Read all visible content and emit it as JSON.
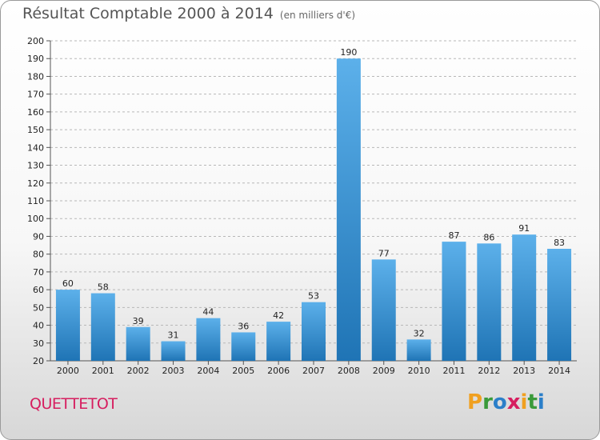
{
  "chart_data": {
    "type": "bar",
    "title": "Résultat Comptable 2000 à 2014",
    "subtitle": "(en milliers d'€)",
    "categories": [
      "2000",
      "2001",
      "2002",
      "2003",
      "2004",
      "2005",
      "2006",
      "2007",
      "2008",
      "2009",
      "2010",
      "2011",
      "2012",
      "2013",
      "2014"
    ],
    "values": [
      60,
      58,
      39,
      31,
      44,
      36,
      42,
      53,
      190,
      77,
      32,
      87,
      86,
      91,
      83
    ],
    "ylim": [
      20,
      200
    ],
    "ytick_step": 10,
    "xlabel": "",
    "ylabel": "",
    "grid": true
  },
  "location": "QUETTETOT",
  "brand": "Proxiti",
  "colors": {
    "bar_light": "#5aaee8",
    "bar_dark": "#1f77b8",
    "grid": "#b8b8b8",
    "title": "#555555",
    "location": "#d61e5f"
  }
}
